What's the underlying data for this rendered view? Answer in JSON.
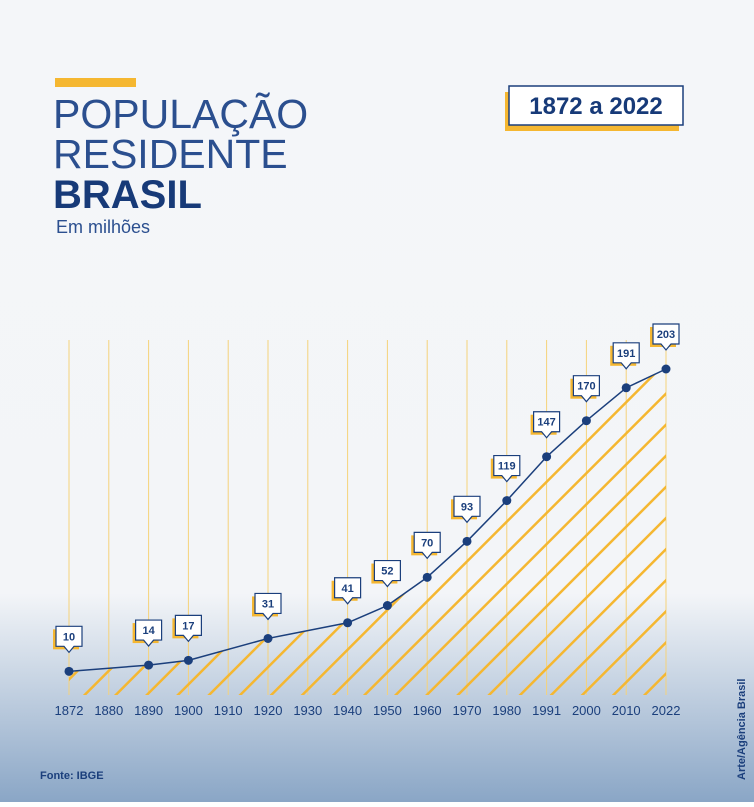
{
  "chart_data": {
    "type": "line",
    "title": [
      "POPULAÇÃO",
      "RESIDENTE",
      "BRASIL"
    ],
    "subtitle": "Em milhões",
    "period": "1872 a 2022",
    "source": "Fonte: IBGE",
    "credit": "Arte/Agência Brasil",
    "categories": [
      "1872",
      "1880",
      "1890",
      "1900",
      "1910",
      "1920",
      "1930",
      "1940",
      "1950",
      "1960",
      "1970",
      "1980",
      "1991",
      "2000",
      "2010",
      "2022"
    ],
    "values": [
      10,
      null,
      14,
      17,
      null,
      31,
      null,
      41,
      52,
      70,
      93,
      119,
      147,
      170,
      191,
      203
    ],
    "color": "#1b3f7c",
    "grid": true
  }
}
